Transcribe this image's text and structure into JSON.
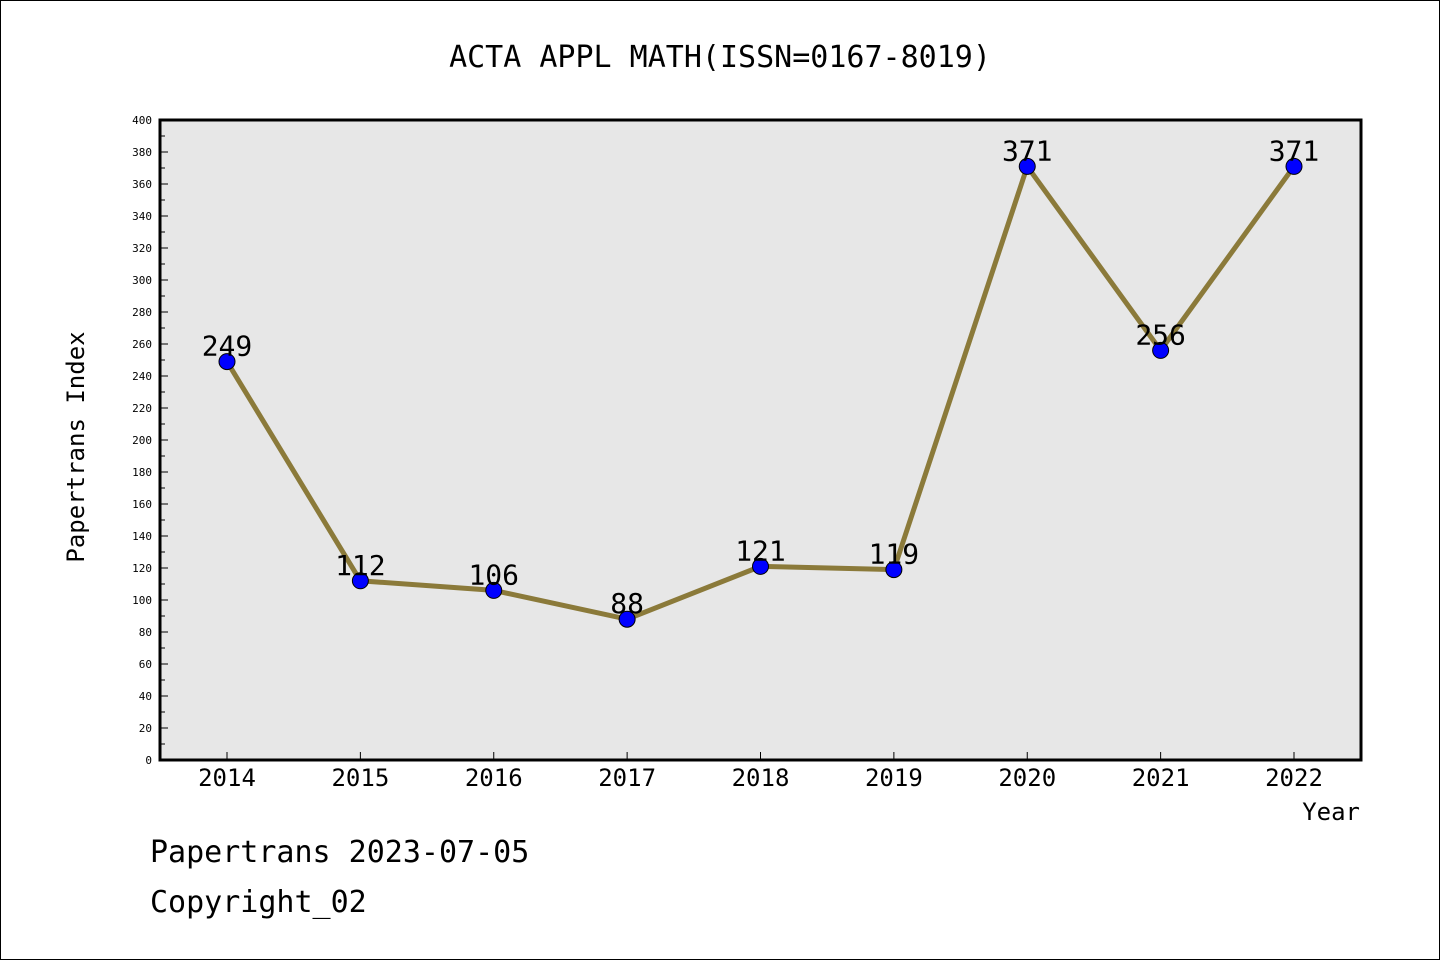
{
  "chart_data": {
    "type": "line",
    "title": "ACTA APPL MATH(ISSN=0167-8019)",
    "xlabel": "Year",
    "ylabel": "Papertrans Index",
    "categories": [
      "2014",
      "2015",
      "2016",
      "2017",
      "2018",
      "2019",
      "2020",
      "2021",
      "2022"
    ],
    "values": [
      249,
      112,
      106,
      88,
      121,
      119,
      371,
      256,
      371
    ],
    "data_labels": [
      "249",
      "112",
      "106",
      "88",
      "121",
      "119",
      "371",
      "256",
      "371"
    ],
    "ylim": [
      0,
      400
    ],
    "yticks": [
      0,
      20,
      40,
      60,
      80,
      100,
      120,
      140,
      160,
      180,
      200,
      220,
      240,
      260,
      280,
      300,
      320,
      340,
      360,
      380,
      400
    ],
    "grid": false,
    "legend": "none",
    "colors": {
      "line": "#8b7a3a",
      "marker": "#0000ff",
      "plot_bg": "#e7e7e7"
    }
  },
  "footer": {
    "line1": "Papertrans 2023-07-05",
    "line2": "Copyright_02"
  }
}
